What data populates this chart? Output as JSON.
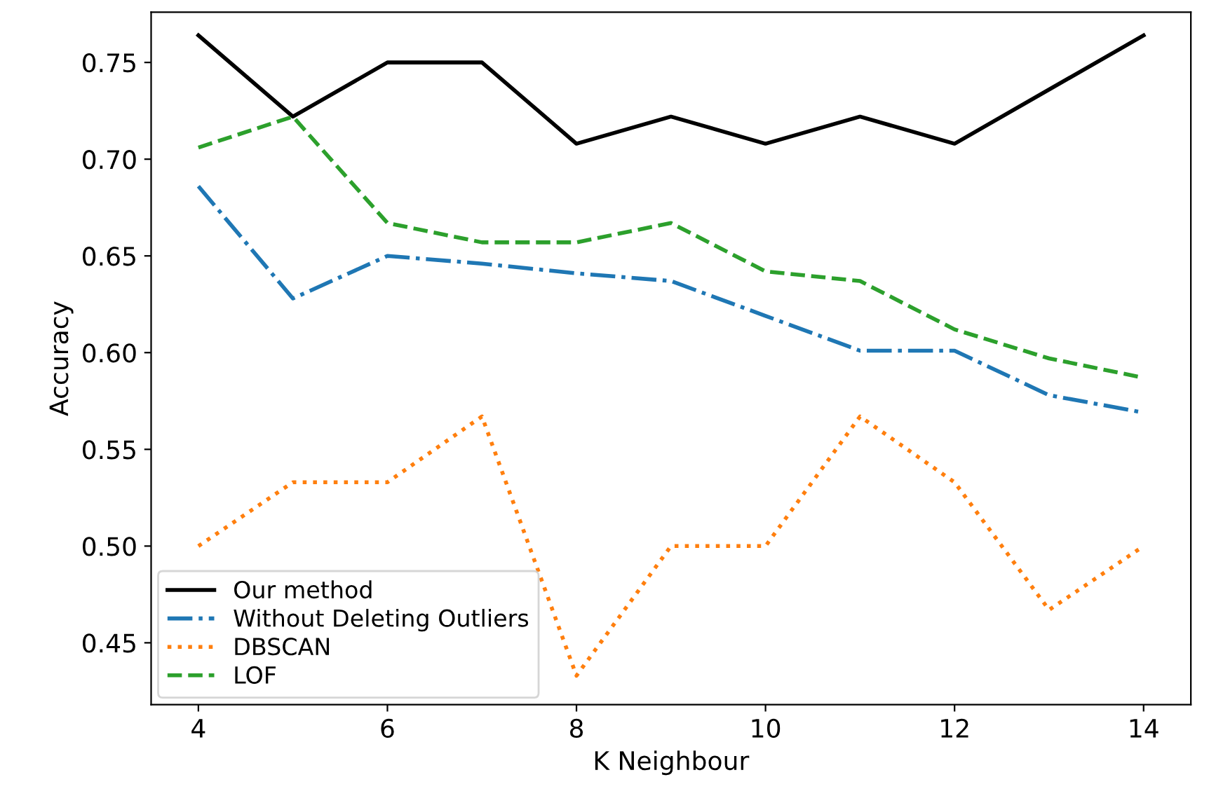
{
  "chart_data": {
    "type": "line",
    "xlabel": "K Neighbour",
    "ylabel": "Accuracy",
    "x": [
      4,
      5,
      6,
      7,
      8,
      9,
      10,
      11,
      12,
      13,
      14
    ],
    "series": [
      {
        "name": "Our method",
        "color": "#000000",
        "line_style": "solid",
        "values": [
          0.764,
          0.722,
          0.75,
          0.75,
          0.708,
          0.722,
          0.708,
          0.722,
          0.708,
          0.736,
          0.764
        ]
      },
      {
        "name": "Without Deleting Outliers",
        "color": "#1f77b4",
        "line_style": "dashdot",
        "values": [
          0.686,
          0.628,
          0.65,
          0.646,
          0.641,
          0.637,
          0.619,
          0.601,
          0.601,
          0.578,
          0.569
        ]
      },
      {
        "name": "DBSCAN",
        "color": "#ff7f0e",
        "line_style": "dotted",
        "values": [
          0.5,
          0.533,
          0.533,
          0.567,
          0.433,
          0.5,
          0.5,
          0.567,
          0.533,
          0.467,
          0.5
        ]
      },
      {
        "name": "LOF",
        "color": "#2ca02c",
        "line_style": "dashed",
        "values": [
          0.706,
          0.722,
          0.667,
          0.657,
          0.657,
          0.667,
          0.642,
          0.637,
          0.612,
          0.597,
          0.587
        ]
      }
    ],
    "xlim": [
      3.5,
      14.5
    ],
    "xticks": [
      4,
      6,
      8,
      10,
      12,
      14
    ],
    "ylim": [
      0.418,
      0.776
    ],
    "yticks": [
      {
        "value": 0.45,
        "label": "0.45"
      },
      {
        "value": 0.5,
        "label": "0.50"
      },
      {
        "value": 0.55,
        "label": "0.55"
      },
      {
        "value": 0.6,
        "label": "0.60"
      },
      {
        "value": 0.65,
        "label": "0.65"
      },
      {
        "value": 0.7,
        "label": "0.70"
      },
      {
        "value": 0.75,
        "label": "0.75"
      }
    ],
    "grid": false,
    "legend": "lower left",
    "marker": "none"
  }
}
